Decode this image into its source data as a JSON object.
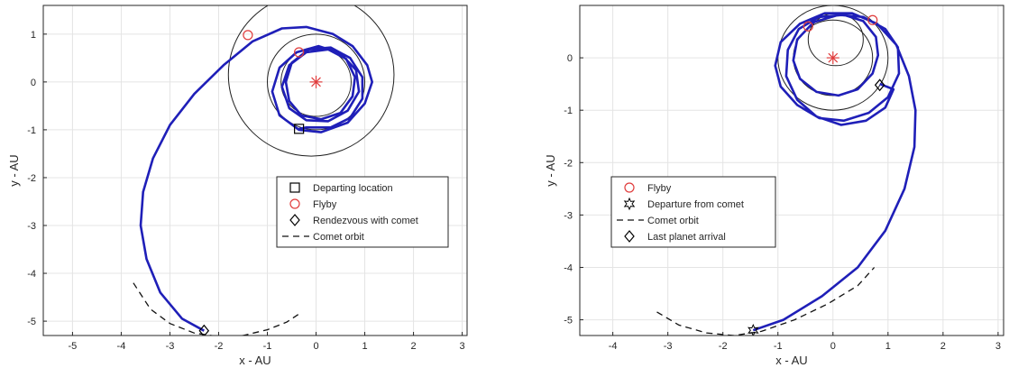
{
  "chart_data": [
    {
      "type": "line",
      "xlabel": "x - AU",
      "ylabel": "y - AU",
      "xlim": [
        -5.6,
        3.1
      ],
      "ylim": [
        -5.3,
        1.6
      ],
      "xticks": [
        -5,
        -4,
        -3,
        -2,
        -1,
        0,
        1,
        2,
        3
      ],
      "yticks": [
        -5,
        -4,
        -3,
        -2,
        -1,
        0,
        1
      ],
      "grid": true,
      "legend_placement": "center-right",
      "circles": [
        {
          "cx": 0,
          "cy": 0,
          "r": 0.72
        },
        {
          "cx": 0,
          "cy": 0,
          "r": 1.0
        },
        {
          "cx": -0.1,
          "cy": 0.15,
          "r": 1.7
        }
      ],
      "trajectory": {
        "color": "#1f1fb8",
        "points": [
          [
            -2.3,
            -5.2
          ],
          [
            -2.75,
            -4.95
          ],
          [
            -3.2,
            -4.4
          ],
          [
            -3.48,
            -3.7
          ],
          [
            -3.6,
            -3.0
          ],
          [
            -3.55,
            -2.3
          ],
          [
            -3.35,
            -1.6
          ],
          [
            -3.0,
            -0.9
          ],
          [
            -2.5,
            -0.25
          ],
          [
            -1.9,
            0.35
          ],
          [
            -1.3,
            0.85
          ],
          [
            -0.7,
            1.12
          ],
          [
            -0.2,
            1.15
          ],
          [
            0.35,
            1.0
          ],
          [
            0.75,
            0.75
          ],
          [
            1.05,
            0.35
          ],
          [
            1.15,
            0.0
          ],
          [
            1.0,
            -0.45
          ],
          [
            0.65,
            -0.85
          ],
          [
            0.1,
            -1.05
          ],
          [
            -0.35,
            -1.0
          ],
          [
            -0.75,
            -0.7
          ],
          [
            -0.9,
            -0.2
          ],
          [
            -0.75,
            0.3
          ],
          [
            -0.4,
            0.62
          ],
          [
            0.05,
            0.75
          ],
          [
            0.5,
            0.6
          ],
          [
            0.82,
            0.25
          ],
          [
            0.88,
            -0.2
          ],
          [
            0.65,
            -0.6
          ],
          [
            0.25,
            -0.82
          ],
          [
            -0.2,
            -0.8
          ],
          [
            -0.55,
            -0.55
          ],
          [
            -0.7,
            -0.1
          ],
          [
            -0.55,
            0.35
          ],
          [
            -0.2,
            0.62
          ],
          [
            0.25,
            0.68
          ],
          [
            0.62,
            0.48
          ],
          [
            0.8,
            0.1
          ],
          [
            0.75,
            -0.3
          ],
          [
            0.5,
            -0.65
          ],
          [
            0.1,
            -0.78
          ],
          [
            -0.3,
            -0.7
          ],
          [
            -0.55,
            -0.4
          ],
          [
            -0.62,
            0.0
          ],
          [
            -0.5,
            0.4
          ],
          [
            -0.15,
            0.68
          ],
          [
            0.3,
            0.72
          ],
          [
            0.7,
            0.5
          ],
          [
            0.95,
            0.1
          ],
          [
            0.95,
            -0.35
          ],
          [
            0.7,
            -0.75
          ],
          [
            0.3,
            -0.95
          ],
          [
            -0.2,
            -0.95
          ],
          [
            -0.35,
            -0.98
          ]
        ]
      },
      "comet_orbit": {
        "points": [
          [
            -3.75,
            -4.2
          ],
          [
            -3.4,
            -4.75
          ],
          [
            -3.0,
            -5.05
          ],
          [
            -2.5,
            -5.25
          ],
          [
            -2.0,
            -5.32
          ],
          [
            -1.5,
            -5.3
          ],
          [
            -1.0,
            -5.18
          ],
          [
            -0.6,
            -5.02
          ],
          [
            -0.35,
            -4.85
          ]
        ]
      },
      "markers": [
        {
          "type": "square",
          "x": -0.35,
          "y": -0.98,
          "color": "#000000"
        },
        {
          "type": "circle",
          "x": -1.4,
          "y": 0.98,
          "color": "#e03c3c"
        },
        {
          "type": "circle",
          "x": -0.35,
          "y": 0.62,
          "color": "#e03c3c"
        },
        {
          "type": "diamond",
          "x": -2.3,
          "y": -5.2,
          "color": "#000000"
        },
        {
          "type": "asterisk",
          "x": 0,
          "y": 0,
          "color": "#e03c3c"
        }
      ],
      "legend": [
        {
          "symbol": "square",
          "label": "Departing location"
        },
        {
          "symbol": "circle",
          "label": "Flyby"
        },
        {
          "symbol": "diamond",
          "label": "Rendezvous with comet"
        },
        {
          "symbol": "dashed",
          "label": "Comet orbit"
        }
      ]
    },
    {
      "type": "line",
      "xlabel": "x - AU",
      "ylabel": "y - AU",
      "xlim": [
        -4.6,
        3.1
      ],
      "ylim": [
        -5.3,
        1.0
      ],
      "xticks": [
        -4,
        -3,
        -2,
        -1,
        0,
        1,
        2,
        3
      ],
      "yticks": [
        -5,
        -4,
        -3,
        -2,
        -1,
        0
      ],
      "grid": true,
      "legend_placement": "center-left",
      "circles": [
        {
          "cx": 0,
          "cy": 0,
          "r": 0.72
        },
        {
          "cx": 0,
          "cy": 0,
          "r": 1.0
        },
        {
          "cx": 0.05,
          "cy": 0.35,
          "r": 0.5
        }
      ],
      "trajectory": {
        "color": "#1f1fb8",
        "points": [
          [
            -1.45,
            -5.2
          ],
          [
            -0.9,
            -5.0
          ],
          [
            -0.2,
            -4.55
          ],
          [
            0.45,
            -4.0
          ],
          [
            0.95,
            -3.3
          ],
          [
            1.3,
            -2.5
          ],
          [
            1.48,
            -1.7
          ],
          [
            1.5,
            -1.0
          ],
          [
            1.38,
            -0.35
          ],
          [
            1.15,
            0.25
          ],
          [
            0.8,
            0.65
          ],
          [
            0.35,
            0.85
          ],
          [
            -0.15,
            0.85
          ],
          [
            -0.6,
            0.65
          ],
          [
            -0.95,
            0.3
          ],
          [
            -1.05,
            -0.15
          ],
          [
            -0.95,
            -0.55
          ],
          [
            -0.65,
            -0.9
          ],
          [
            -0.25,
            -1.15
          ],
          [
            0.2,
            -1.2
          ],
          [
            0.65,
            -1.05
          ],
          [
            1.0,
            -0.75
          ],
          [
            1.2,
            -0.3
          ],
          [
            1.18,
            0.2
          ],
          [
            0.95,
            0.55
          ],
          [
            0.55,
            0.78
          ],
          [
            0.1,
            0.82
          ],
          [
            -0.35,
            0.68
          ],
          [
            -0.65,
            0.35
          ],
          [
            -0.72,
            -0.05
          ],
          [
            -0.6,
            -0.4
          ],
          [
            -0.3,
            -0.65
          ],
          [
            0.1,
            -0.72
          ],
          [
            0.45,
            -0.6
          ],
          [
            0.72,
            -0.3
          ],
          [
            0.82,
            0.05
          ],
          [
            0.78,
            0.4
          ],
          [
            0.55,
            0.7
          ],
          [
            0.2,
            0.82
          ],
          [
            -0.25,
            0.78
          ],
          [
            -0.62,
            0.55
          ],
          [
            -0.82,
            0.15
          ],
          [
            -0.85,
            -0.35
          ],
          [
            -0.65,
            -0.8
          ],
          [
            -0.3,
            -1.12
          ],
          [
            0.15,
            -1.28
          ],
          [
            0.6,
            -1.2
          ],
          [
            0.95,
            -0.95
          ],
          [
            1.1,
            -0.6
          ],
          [
            0.85,
            -0.5
          ]
        ]
      },
      "comet_orbit": {
        "points": [
          [
            -3.2,
            -4.85
          ],
          [
            -2.8,
            -5.1
          ],
          [
            -2.3,
            -5.25
          ],
          [
            -1.8,
            -5.3
          ],
          [
            -1.3,
            -5.22
          ],
          [
            -0.7,
            -5.0
          ],
          [
            -0.1,
            -4.7
          ],
          [
            0.45,
            -4.35
          ],
          [
            0.75,
            -4.0
          ]
        ]
      },
      "markers": [
        {
          "type": "circle",
          "x": -0.45,
          "y": 0.6,
          "color": "#e03c3c"
        },
        {
          "type": "circle",
          "x": 0.72,
          "y": 0.72,
          "color": "#e03c3c"
        },
        {
          "type": "diamond",
          "x": 0.85,
          "y": -0.52,
          "color": "#000000"
        },
        {
          "type": "star",
          "x": -1.45,
          "y": -5.2,
          "color": "#000000"
        },
        {
          "type": "asterisk",
          "x": 0,
          "y": 0,
          "color": "#e03c3c"
        }
      ],
      "legend": [
        {
          "symbol": "circle",
          "label": "Flyby"
        },
        {
          "symbol": "star",
          "label": "Departure from comet"
        },
        {
          "symbol": "dashed",
          "label": "Comet orbit"
        },
        {
          "symbol": "diamond",
          "label": "Last planet arrival"
        }
      ]
    }
  ]
}
